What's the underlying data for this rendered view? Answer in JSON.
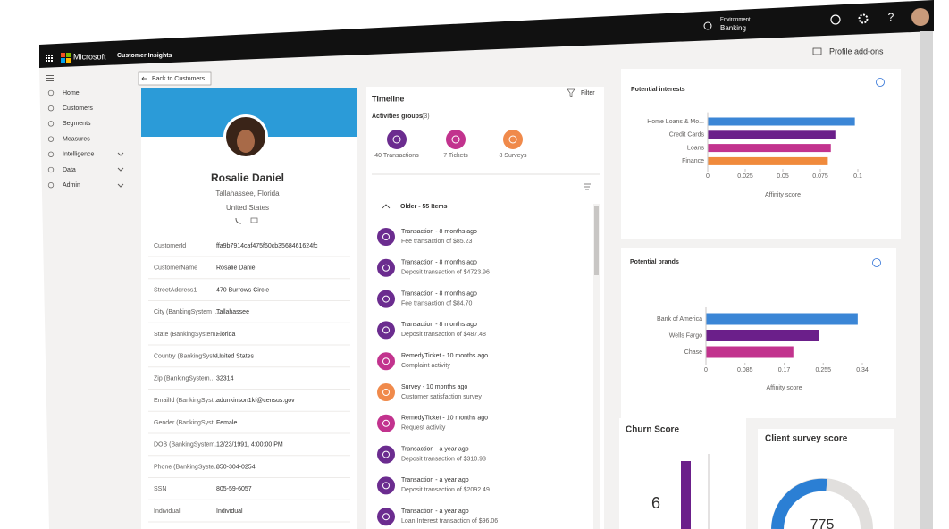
{
  "header": {
    "brand": "Microsoft",
    "app": "Customer Insights",
    "environment_label": "Environment",
    "environment": "Banking"
  },
  "nav": [
    "Home",
    "Customers",
    "Segments",
    "Measures",
    "Intelligence",
    "Data",
    "Admin"
  ],
  "toolbar": {
    "back": "Back to Customers",
    "addons": "Profile add-ons"
  },
  "profile": {
    "name": "Rosalie Daniel",
    "city": "Tallahassee, Florida",
    "country": "United States",
    "fields": [
      [
        "CustomerId",
        "ffa9b7914caf475f60cb3568461624fc"
      ],
      [
        "CustomerName",
        "Rosalie Daniel"
      ],
      [
        "StreetAddress1",
        "470 Burrows Circle"
      ],
      [
        "City (BankingSystem_...",
        "Tallahassee"
      ],
      [
        "State (BankingSystem...",
        "Florida"
      ],
      [
        "Country (BankingSyste...",
        "United States"
      ],
      [
        "Zip (BankingSystem...",
        "32314"
      ],
      [
        "EmailId (BankingSyst...",
        "adunkinson1kf@census.gov"
      ],
      [
        "Gender (BankingSyst...",
        "Female"
      ],
      [
        "DOB (BankingSystem...",
        "12/23/1991, 4:00:00 PM"
      ],
      [
        "Phone (BankingSyste...",
        "850-304-0254"
      ],
      [
        "SSN",
        "805-59-6057"
      ],
      [
        "Individual",
        "Individual"
      ]
    ]
  },
  "timeline": {
    "title": "Timeline",
    "filter": "Filter",
    "groups_label": "Activities groups",
    "groups_count": "(3)",
    "groups": [
      {
        "label": "40 Transactions",
        "color": "#6b2c8f"
      },
      {
        "label": "7 Tickets",
        "color": "#c2338e"
      },
      {
        "label": "8 Surveys",
        "color": "#f08a4b"
      }
    ],
    "section": "Older - 55 Items",
    "items": [
      {
        "title": "Transaction - 8 months ago",
        "detail": "Fee transaction of $85.23",
        "color": "#6b2c8f"
      },
      {
        "title": "Transaction - 8 months ago",
        "detail": "Deposit transaction of $4723.96",
        "color": "#6b2c8f"
      },
      {
        "title": "Transaction - 8 months ago",
        "detail": "Fee transaction of $84.70",
        "color": "#6b2c8f"
      },
      {
        "title": "Transaction - 8 months ago",
        "detail": "Deposit transaction of $487.48",
        "color": "#6b2c8f"
      },
      {
        "title": "RemedyTicket - 10 months ago",
        "detail": "Complaint activity",
        "color": "#c2338e"
      },
      {
        "title": "Survey - 10 months ago",
        "detail": "Customer satisfaction survey",
        "color": "#f08a4b"
      },
      {
        "title": "RemedyTicket - 10 months ago",
        "detail": "Request activity",
        "color": "#c2338e"
      },
      {
        "title": "Transaction - a year ago",
        "detail": "Deposit transaction of $310.93",
        "color": "#6b2c8f"
      },
      {
        "title": "Transaction - a year ago",
        "detail": "Deposit transaction of $2092.49",
        "color": "#6b2c8f"
      },
      {
        "title": "Transaction - a year ago",
        "detail": "Loan Interest transaction of $96.06",
        "color": "#6b2c8f"
      }
    ]
  },
  "interests": {
    "title": "Potential interests",
    "type": "bar",
    "categories": [
      "Home Loans & Mo...",
      "Credit Cards",
      "Loans",
      "Finance"
    ],
    "values": [
      0.098,
      0.085,
      0.082,
      0.08
    ],
    "colors": [
      "#3b86d6",
      "#6b1f8a",
      "#c2338e",
      "#f08a3c"
    ],
    "xlim": [
      0,
      0.1
    ],
    "xticks": [
      0,
      0.025,
      0.05,
      0.075,
      0.1
    ],
    "xlabel": "Affinity score"
  },
  "brands": {
    "title": "Potential brands",
    "type": "bar",
    "categories": [
      "Bank of America",
      "Wells Fargo",
      "Chase"
    ],
    "values": [
      0.33,
      0.245,
      0.19
    ],
    "colors": [
      "#3b86d6",
      "#6b1f8a",
      "#c2338e"
    ],
    "xlim": [
      0,
      0.34
    ],
    "xticks": [
      0,
      0.085,
      0.17,
      0.255,
      0.34
    ],
    "xlabel": "Affinity score"
  },
  "churn": {
    "title": "Churn Score",
    "value": 6
  },
  "survey": {
    "title": "Client survey score",
    "value": 775
  }
}
